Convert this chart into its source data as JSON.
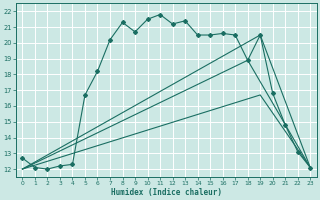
{
  "xlabel": "Humidex (Indice chaleur)",
  "bg_color": "#cce8e4",
  "grid_color": "#ffffff",
  "line_color": "#1a6e62",
  "xlim": [
    -0.5,
    23.5
  ],
  "ylim": [
    11.5,
    22.5
  ],
  "xticks": [
    0,
    1,
    2,
    3,
    4,
    5,
    6,
    7,
    8,
    9,
    10,
    11,
    12,
    13,
    14,
    15,
    16,
    17,
    18,
    19,
    20,
    21,
    22,
    23
  ],
  "yticks": [
    12,
    13,
    14,
    15,
    16,
    17,
    18,
    19,
    20,
    21,
    22
  ],
  "line1_x": [
    0,
    1,
    2,
    3,
    4,
    5,
    6,
    7,
    8,
    9,
    10,
    11,
    12,
    13,
    14,
    15,
    16,
    17,
    18,
    19,
    20,
    21,
    22,
    23
  ],
  "line1_y": [
    12.7,
    12.1,
    12.0,
    12.2,
    12.3,
    16.7,
    18.2,
    20.2,
    21.3,
    20.7,
    21.5,
    21.8,
    21.2,
    21.4,
    20.5,
    20.5,
    20.6,
    20.5,
    18.9,
    20.5,
    16.8,
    14.8,
    13.1,
    12.1
  ],
  "line2_x": [
    0,
    18,
    23
  ],
  "line2_y": [
    12.0,
    18.9,
    12.1
  ],
  "line3_x": [
    0,
    19,
    23
  ],
  "line3_y": [
    12.0,
    20.5,
    12.1
  ],
  "line4_x": [
    0,
    19,
    23
  ],
  "line4_y": [
    12.0,
    16.7,
    12.1
  ]
}
